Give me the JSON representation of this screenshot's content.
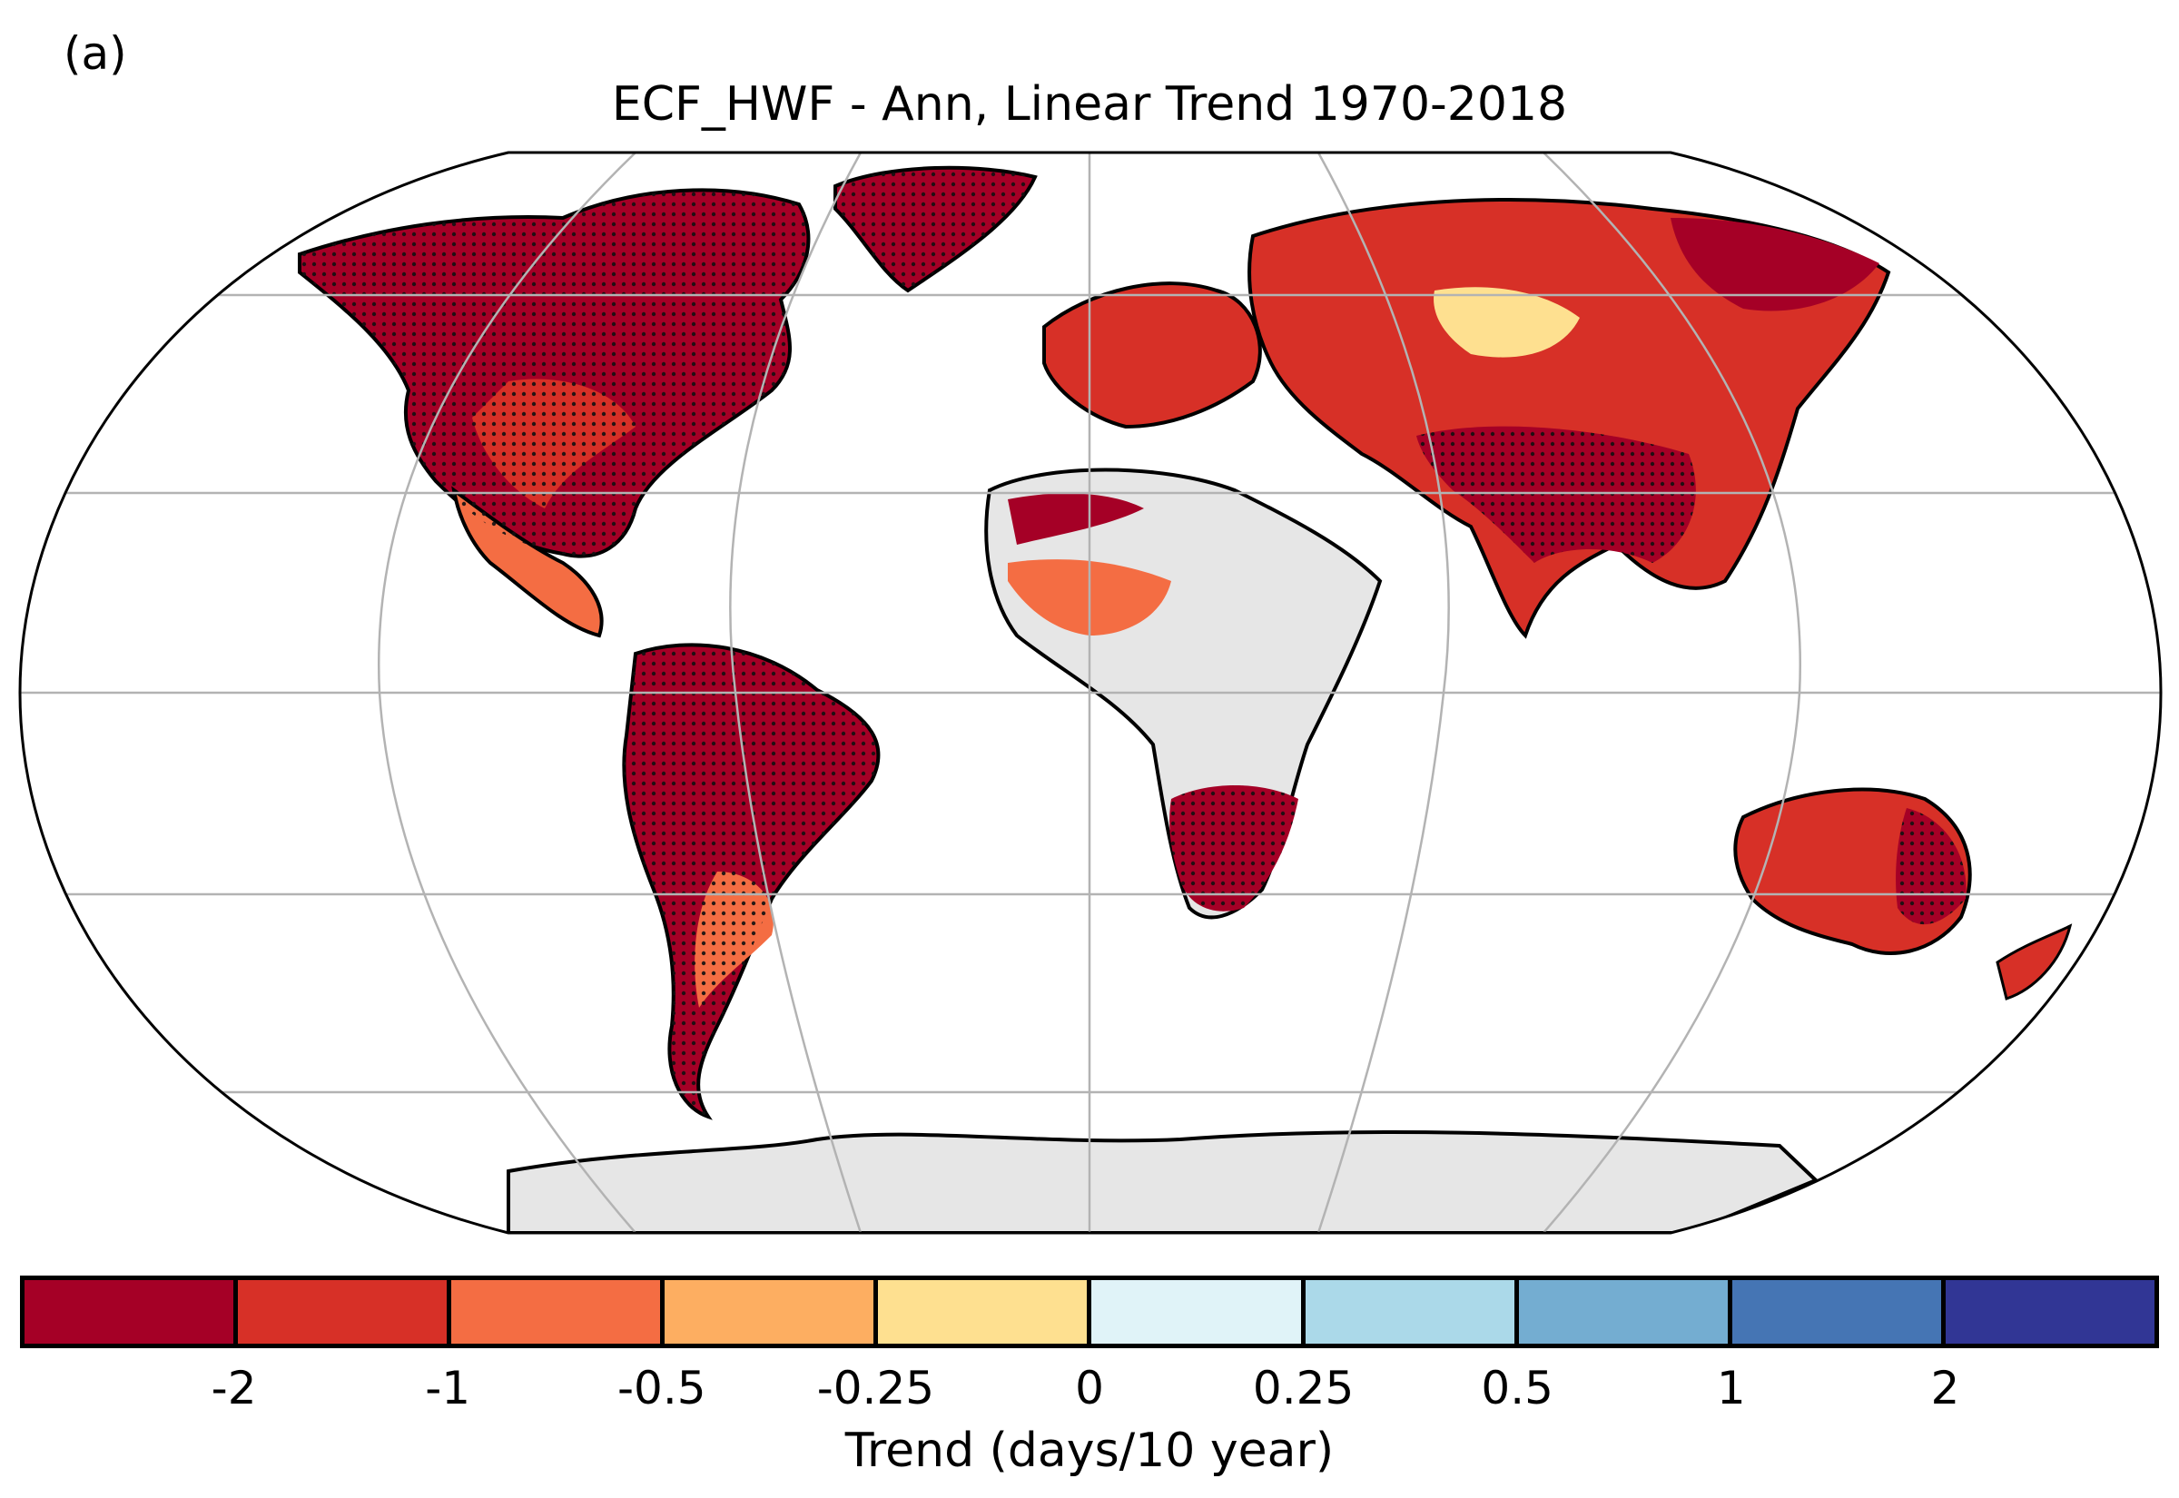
{
  "panel_label": "(a)",
  "title": "ECF_HWF - Ann, Linear Trend 1970-2018",
  "colorbar": {
    "label": "Trend (days/10 year)",
    "ticks": [
      "-2",
      "-1",
      "-0.5",
      "-0.25",
      "0",
      "0.25",
      "0.5",
      "1",
      "2"
    ],
    "colors": [
      "#a50026",
      "#d73027",
      "#f46d43",
      "#fdae61",
      "#fee090",
      "#e0f3f8",
      "#abd9e9",
      "#74add1",
      "#4575b4",
      "#313695"
    ]
  },
  "map": {
    "projection": "Robinson",
    "stippling": "dots mark significant trends",
    "missing_data_color": "#e6e6e6",
    "regions": [
      {
        "name": "North America",
        "value_class": "-2"
      },
      {
        "name": "Central USA",
        "value_class": "-1"
      },
      {
        "name": "Mexico",
        "value_class": "-0.5"
      },
      {
        "name": "South America",
        "value_class": "-2"
      },
      {
        "name": "Europe",
        "value_class": "-1"
      },
      {
        "name": "Central Asia",
        "value_class": "0"
      },
      {
        "name": "South Asia",
        "value_class": "-2"
      },
      {
        "name": "Sahel",
        "value_class": "-0.5"
      },
      {
        "name": "Southern Africa",
        "value_class": "-2"
      },
      {
        "name": "Australia",
        "value_class": "-1"
      },
      {
        "name": "Antarctica",
        "value_class": "missing"
      }
    ]
  }
}
